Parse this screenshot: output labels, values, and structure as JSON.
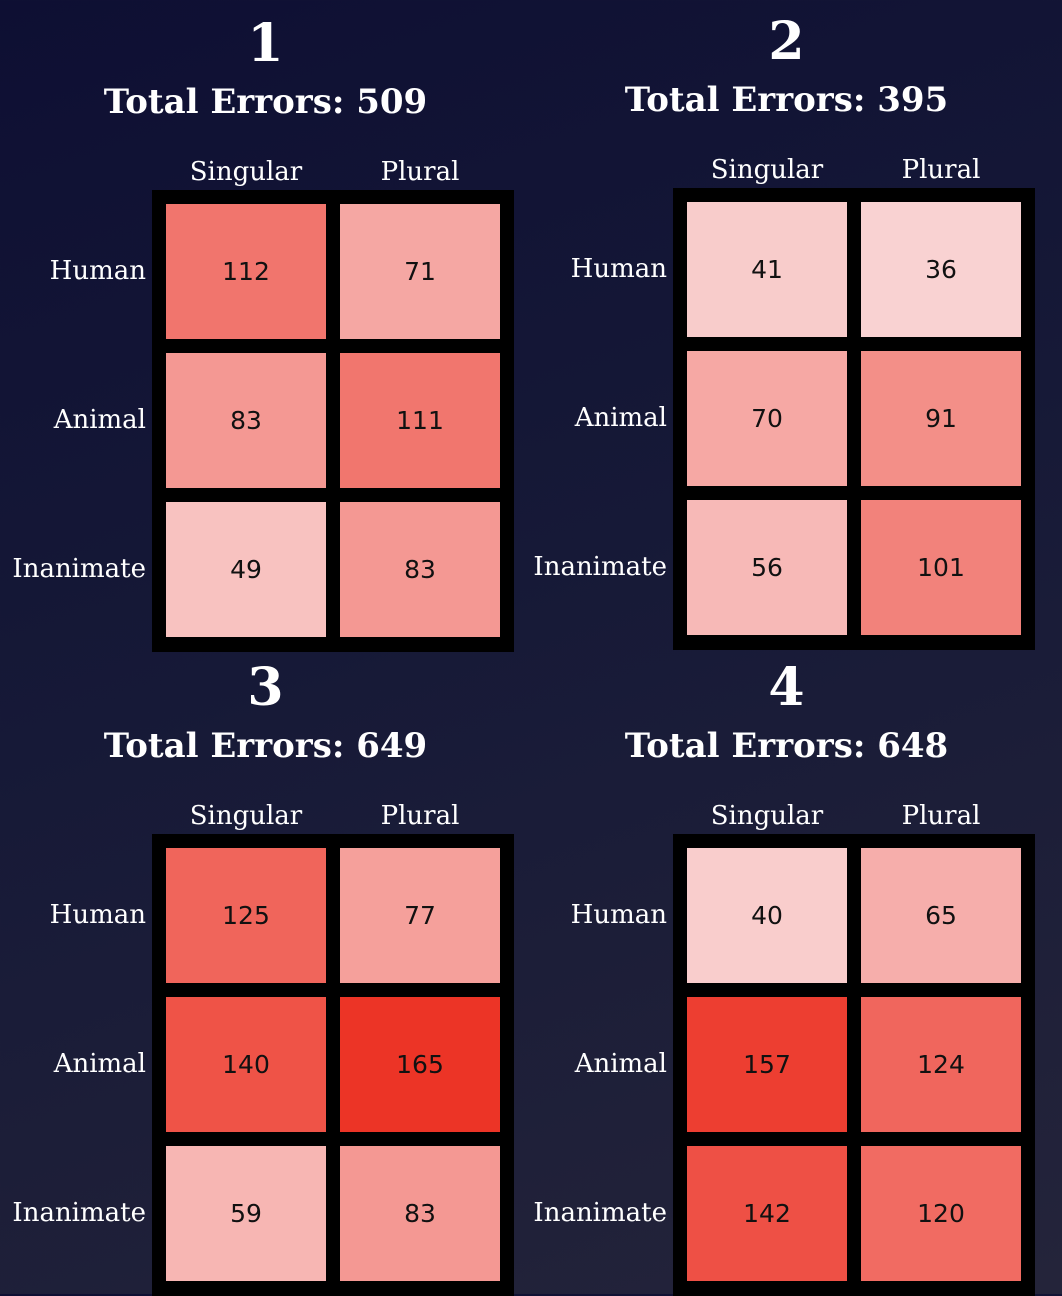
{
  "colors": {
    "low": "#f9d3d3",
    "high": "#ec3426",
    "grid_border": "#000000",
    "background_top": "#0e0f33",
    "background_bottom": "#24243a"
  },
  "chart_data": [
    {
      "type": "heatmap",
      "number": "1",
      "title": "Total Errors: 509",
      "columns": [
        "Singular",
        "Plural"
      ],
      "rows": [
        "Human",
        "Animal",
        "Inanimate"
      ],
      "values": [
        [
          112,
          71
        ],
        [
          83,
          111
        ],
        [
          49,
          83
        ]
      ],
      "color_range": [
        35,
        165
      ]
    },
    {
      "type": "heatmap",
      "number": "2",
      "title": "Total Errors: 395",
      "columns": [
        "Singular",
        "Plural"
      ],
      "rows": [
        "Human",
        "Animal",
        "Inanimate"
      ],
      "values": [
        [
          41,
          36
        ],
        [
          70,
          91
        ],
        [
          56,
          101
        ]
      ],
      "color_range": [
        35,
        165
      ]
    },
    {
      "type": "heatmap",
      "number": "3",
      "title": "Total Errors: 649",
      "columns": [
        "Singular",
        "Plural"
      ],
      "rows": [
        "Human",
        "Animal",
        "Inanimate"
      ],
      "values": [
        [
          125,
          77
        ],
        [
          140,
          165
        ],
        [
          59,
          83
        ]
      ],
      "color_range": [
        35,
        165
      ]
    },
    {
      "type": "heatmap",
      "number": "4",
      "title": "Total Errors: 648",
      "columns": [
        "Singular",
        "Plural"
      ],
      "rows": [
        "Human",
        "Animal",
        "Inanimate"
      ],
      "values": [
        [
          40,
          65
        ],
        [
          157,
          124
        ],
        [
          142,
          120
        ]
      ],
      "color_range": [
        35,
        165
      ]
    }
  ]
}
